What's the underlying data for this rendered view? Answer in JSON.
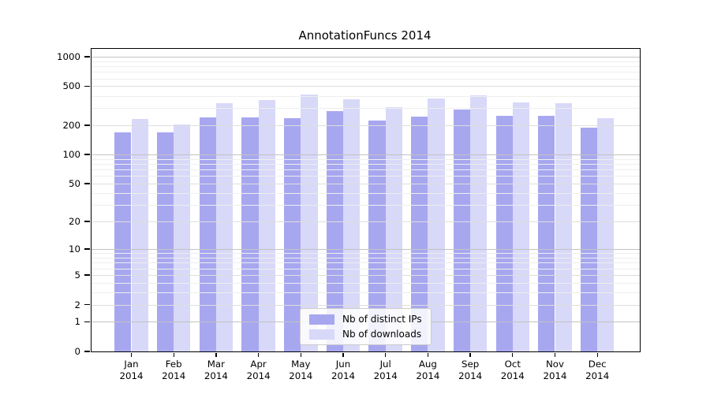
{
  "title": "AnnotationFuncs 2014",
  "chart_data": {
    "type": "bar",
    "title": "AnnotationFuncs 2014",
    "year": "2014",
    "categories": [
      "Jan",
      "Feb",
      "Mar",
      "Apr",
      "May",
      "Jun",
      "Jul",
      "Aug",
      "Sep",
      "Oct",
      "Nov",
      "Dec"
    ],
    "series": [
      {
        "name": "Nb of distinct IPs",
        "color": "#a7a7f0",
        "values": [
          170,
          170,
          240,
          240,
          235,
          280,
          225,
          245,
          290,
          250,
          250,
          190
        ]
      },
      {
        "name": "Nb of downloads",
        "color": "#d8d8f8",
        "values": [
          230,
          205,
          335,
          360,
          410,
          370,
          305,
          375,
          405,
          345,
          335,
          235
        ]
      }
    ],
    "xlabel": "",
    "ylabel": "",
    "y_ticks": [
      0,
      1,
      2,
      5,
      10,
      20,
      50,
      100,
      200,
      500,
      1000
    ],
    "y_scale": "log1p",
    "ylim": [
      0,
      1000
    ],
    "grid": true,
    "legend_position": "lower center",
    "colors": {
      "axis": "#000000",
      "grid_major": "#c3c3c3",
      "grid_mid": "#dedede",
      "grid_minor": "#eeeeee",
      "background": "#ffffff"
    }
  }
}
